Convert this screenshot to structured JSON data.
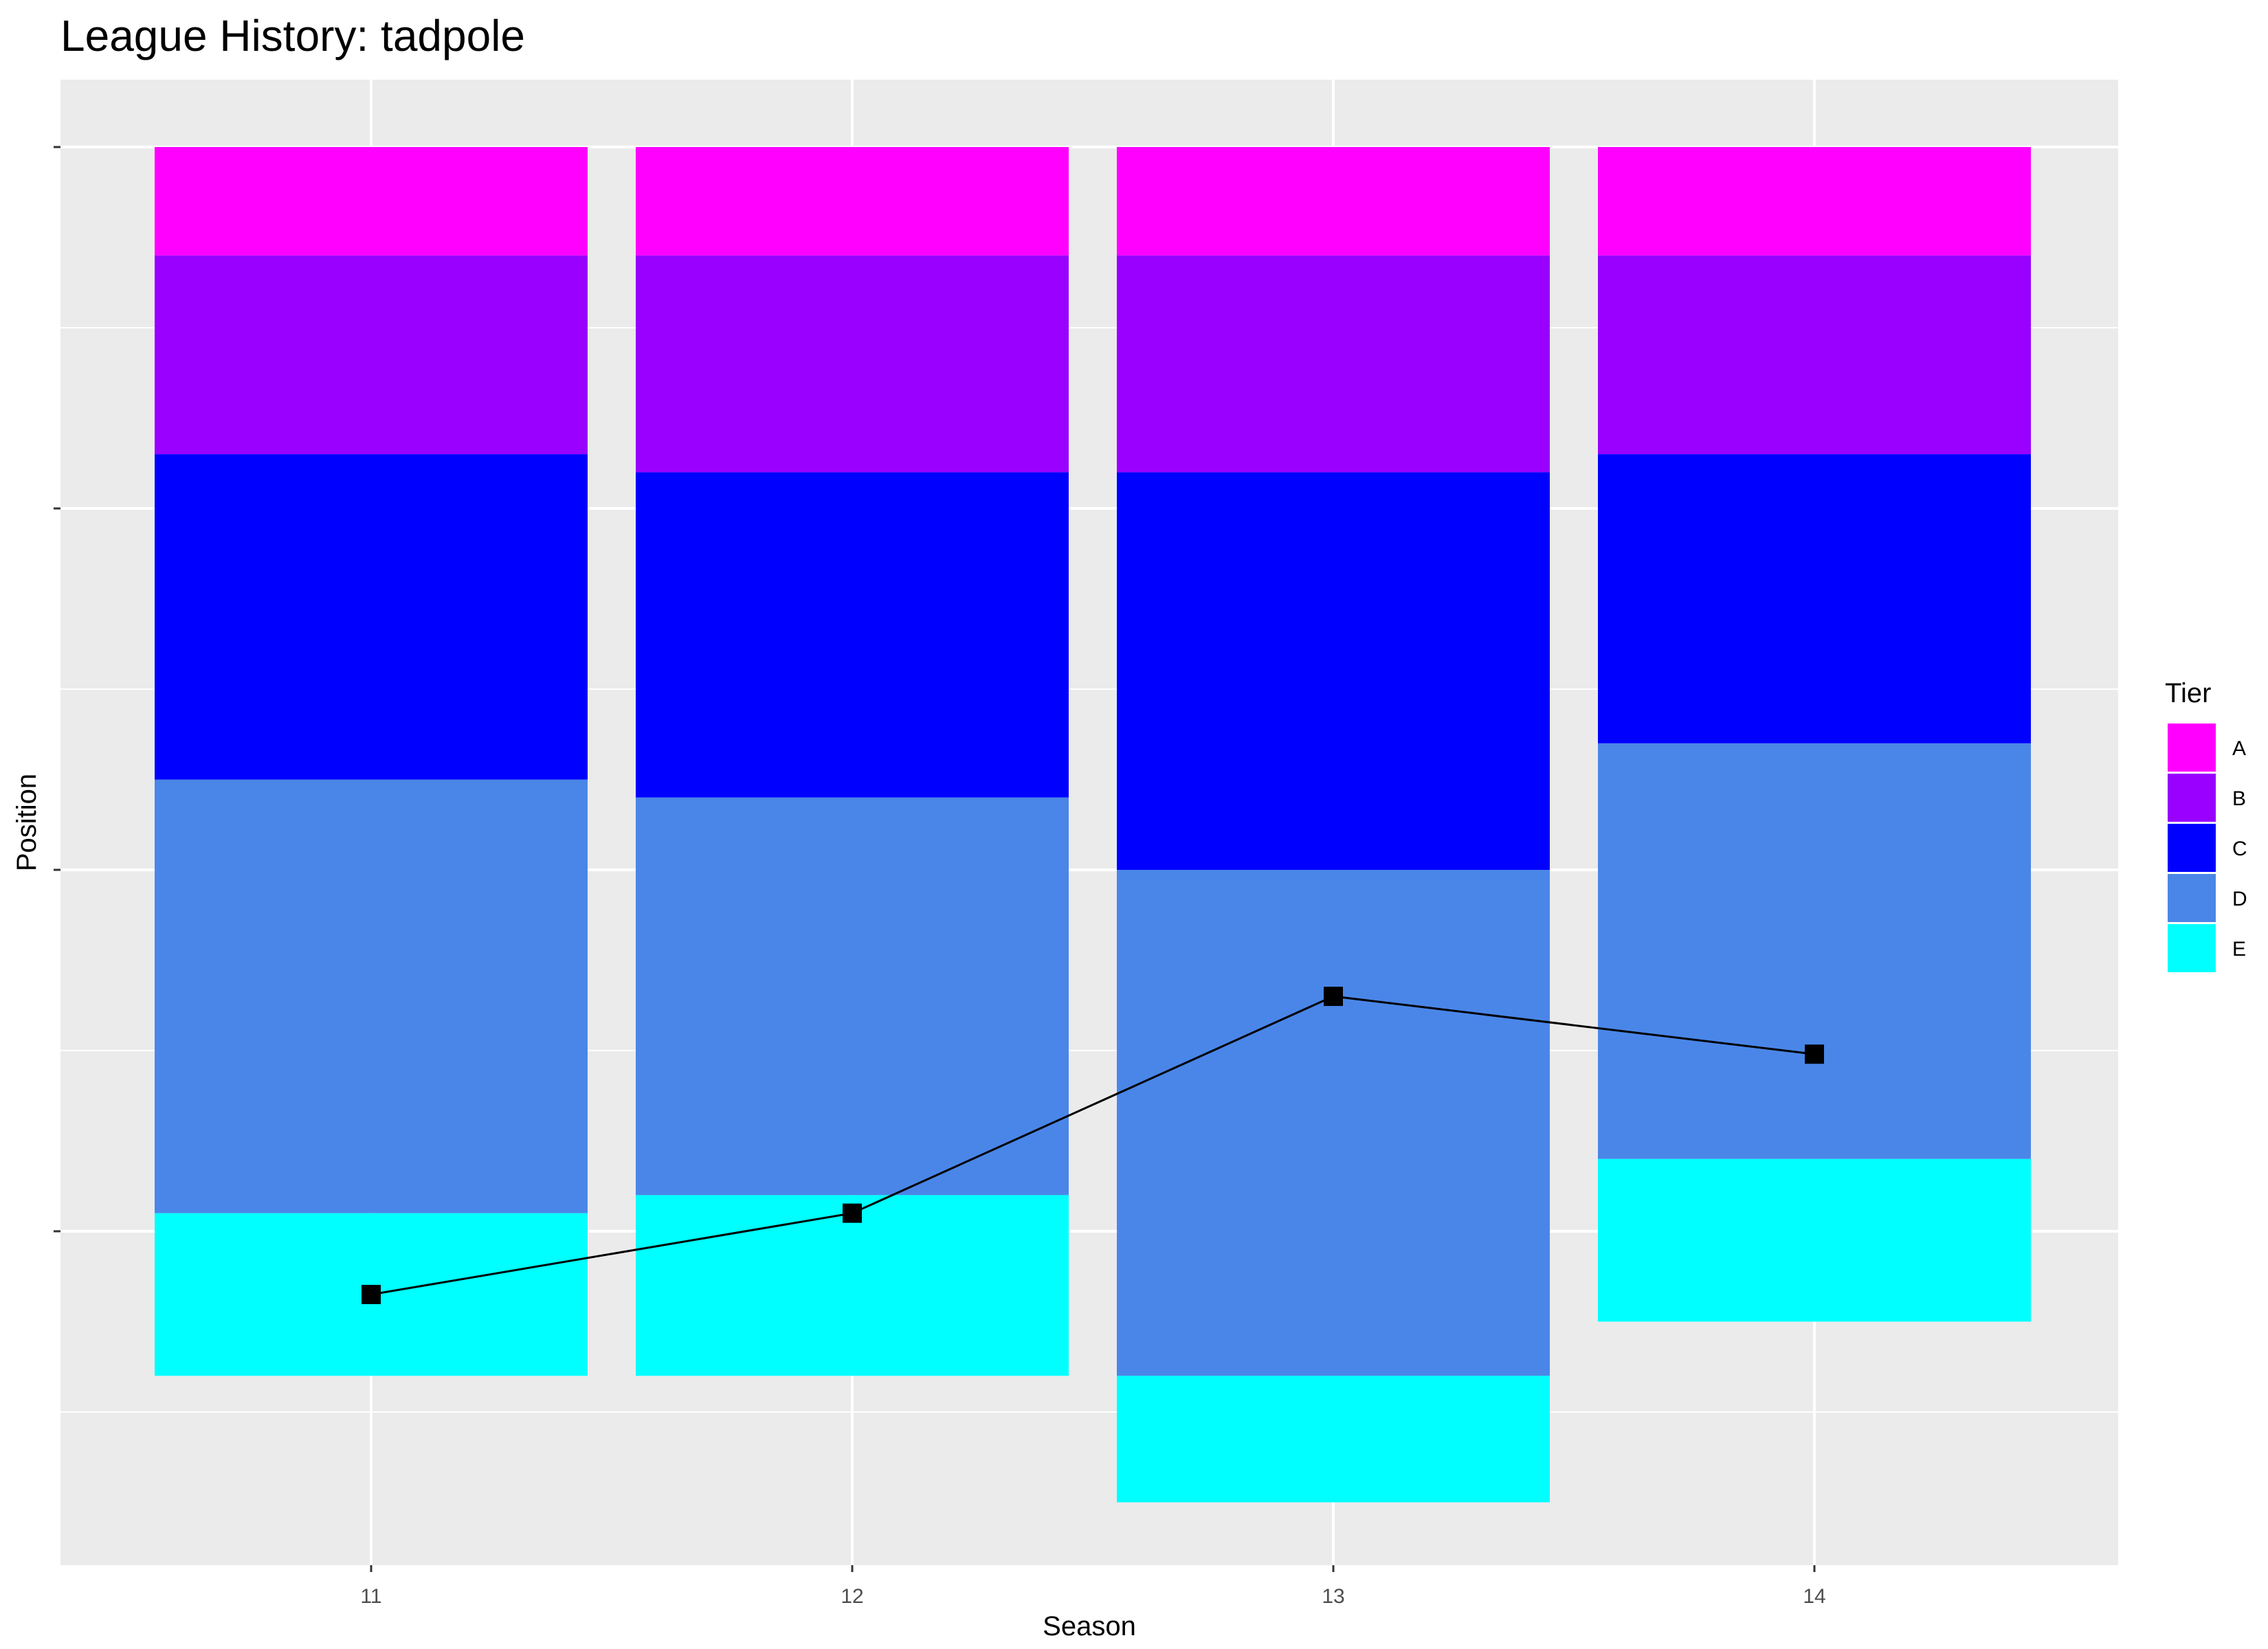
{
  "chart_data": {
    "type": "bar",
    "stacked": true,
    "title": "League History: tadpole",
    "xlabel": "Season",
    "ylabel": "Position",
    "categories": [
      "11",
      "12",
      "13",
      "14"
    ],
    "y_reversed": true,
    "y_tick_labels_shown": false,
    "grid": true,
    "legend": {
      "title": "Tier",
      "position": "right",
      "entries": [
        {
          "label": "A",
          "color": "#FF00FF"
        },
        {
          "label": "B",
          "color": "#9900FF"
        },
        {
          "label": "C",
          "color": "#0000FF"
        },
        {
          "label": "D",
          "color": "#4A86E8"
        },
        {
          "label": "E",
          "color": "#00FFFF"
        }
      ]
    },
    "series": [
      {
        "name": "A",
        "color": "#FF00FF",
        "values": [
          6,
          6,
          6,
          6
        ]
      },
      {
        "name": "B",
        "color": "#9900FF",
        "values": [
          11,
          12,
          12,
          11
        ]
      },
      {
        "name": "C",
        "color": "#0000FF",
        "values": [
          18,
          18,
          22,
          16
        ]
      },
      {
        "name": "D",
        "color": "#4A86E8",
        "values": [
          24,
          22,
          28,
          23
        ]
      },
      {
        "name": "E",
        "color": "#00FFFF",
        "values": [
          9,
          10,
          7,
          9
        ]
      }
    ],
    "line": {
      "marker": "square",
      "color": "#000000",
      "values": [
        63.5,
        59,
        47,
        50.2
      ]
    },
    "ylim": [
      0,
      78
    ]
  }
}
